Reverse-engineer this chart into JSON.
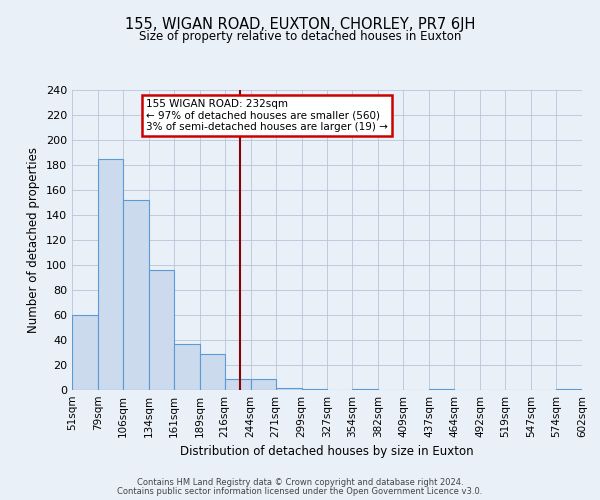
{
  "title": "155, WIGAN ROAD, EUXTON, CHORLEY, PR7 6JH",
  "subtitle": "Size of property relative to detached houses in Euxton",
  "xlabel": "Distribution of detached houses by size in Euxton",
  "ylabel": "Number of detached properties",
  "bin_edges": [
    51,
    79,
    106,
    134,
    161,
    189,
    216,
    244,
    271,
    299,
    327,
    354,
    382,
    409,
    437,
    464,
    492,
    519,
    547,
    574,
    602
  ],
  "counts": [
    60,
    185,
    152,
    96,
    37,
    29,
    9,
    9,
    2,
    1,
    0,
    1,
    0,
    0,
    1,
    0,
    0,
    0,
    0,
    1
  ],
  "bar_color": "#ccdaee",
  "bar_edge_color": "#5b9bd5",
  "property_size": 232,
  "vline_color": "#8b0000",
  "annotation_line1": "155 WIGAN ROAD: 232sqm",
  "annotation_line2": "← 97% of detached houses are smaller (560)",
  "annotation_line3": "3% of semi-detached houses are larger (19) →",
  "annotation_box_facecolor": "#ffffff",
  "annotation_box_edgecolor": "#cc0000",
  "ylim": [
    0,
    240
  ],
  "yticks": [
    0,
    20,
    40,
    60,
    80,
    100,
    120,
    140,
    160,
    180,
    200,
    220,
    240
  ],
  "footer1": "Contains HM Land Registry data © Crown copyright and database right 2024.",
  "footer2": "Contains public sector information licensed under the Open Government Licence v3.0.",
  "bg_color": "#eaf0f8",
  "grid_color": "#b8c4d8"
}
